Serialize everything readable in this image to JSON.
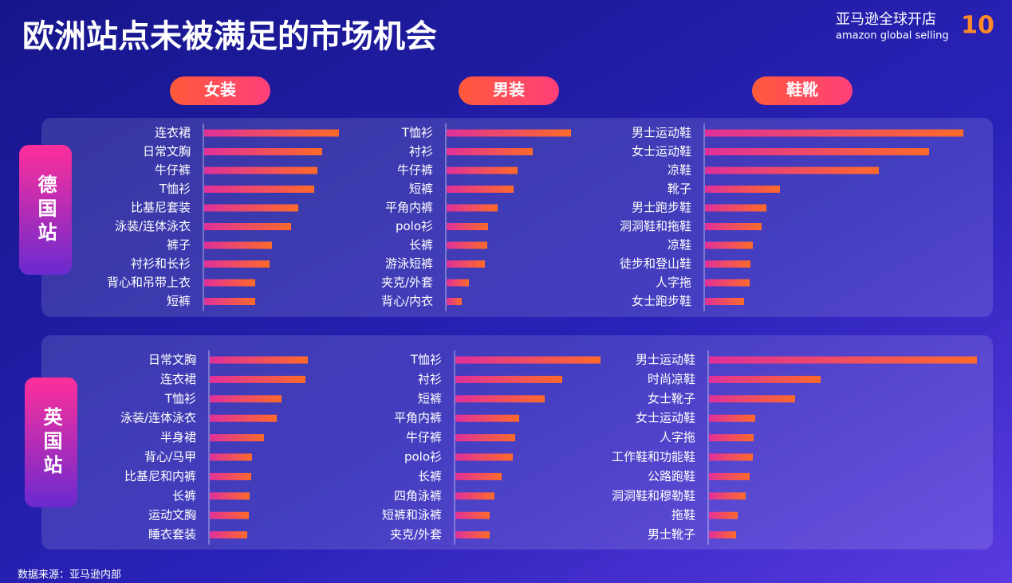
{
  "title": "欧洲站点未被满足的市场机会",
  "logo": {
    "cn": "亚马逊全球开店",
    "en": "amazon global selling",
    "badge": "10"
  },
  "columns": [
    "女装",
    "男装",
    "鞋靴"
  ],
  "rows": [
    "德国站",
    "英国站"
  ],
  "source": "数据来源：亚马逊内部",
  "chart_data": [
    {
      "type": "bar",
      "orientation": "horizontal",
      "categories": [
        "连衣裙",
        "日常文胸",
        "牛仔裤",
        "T恤衫",
        "比基尼套装",
        "泳装/连体泳衣",
        "裤子",
        "衬衫和长衫",
        "背心和吊带上衣",
        "短裤"
      ],
      "values": [
        169,
        148,
        142,
        138,
        118,
        109,
        85,
        82,
        64,
        64
      ]
    },
    {
      "type": "bar",
      "orientation": "horizontal",
      "categories": [
        "T恤衫",
        "衬衫",
        "牛仔裤",
        "短裤",
        "平角内裤",
        "polo衫",
        "长裤",
        "游泳短裤",
        "夹克/外套",
        "背心/内衣"
      ],
      "values": [
        156,
        108,
        89,
        84,
        64,
        52,
        51,
        48,
        28,
        19
      ]
    },
    {
      "type": "bar",
      "orientation": "horizontal",
      "categories": [
        "男士运动鞋",
        "女士运动鞋",
        "凉鞋",
        "靴子",
        "男士跑步鞋",
        "洞洞鞋和拖鞋",
        "凉鞋",
        "徒步和登山鞋",
        "人字拖",
        "女士跑步鞋"
      ],
      "values": [
        324,
        281,
        218,
        94,
        77,
        71,
        60,
        57,
        56,
        49
      ]
    },
    {
      "type": "bar",
      "orientation": "horizontal",
      "categories": [
        "日常文胸",
        "连衣裙",
        "T恤衫",
        "泳装/连体泳衣",
        "半身裙",
        "背心/马甲",
        "比基尼和内裤",
        "长裤",
        "运动文胸",
        "睡衣套装"
      ],
      "values": [
        123,
        120,
        90,
        84,
        68,
        53,
        52,
        50,
        49,
        47
      ]
    },
    {
      "type": "bar",
      "orientation": "horizontal",
      "categories": [
        "T恤衫",
        "衬衫",
        "短裤",
        "平角内裤",
        "牛仔裤",
        "polo衫",
        "长裤",
        "四角泳裤",
        "短裤和泳裤",
        "夹克/外套"
      ],
      "values": [
        182,
        134,
        112,
        80,
        75,
        72,
        58,
        49,
        43,
        43
      ]
    },
    {
      "type": "bar",
      "orientation": "horizontal",
      "categories": [
        "男士运动鞋",
        "时尚凉鞋",
        "女士靴子",
        "女士运动鞋",
        "人字拖",
        "工作鞋和功能鞋",
        "公路跑鞋",
        "洞洞鞋和穆勒鞋",
        "拖鞋",
        "男士靴子"
      ],
      "values": [
        336,
        140,
        108,
        58,
        56,
        55,
        51,
        46,
        36,
        34
      ]
    }
  ]
}
